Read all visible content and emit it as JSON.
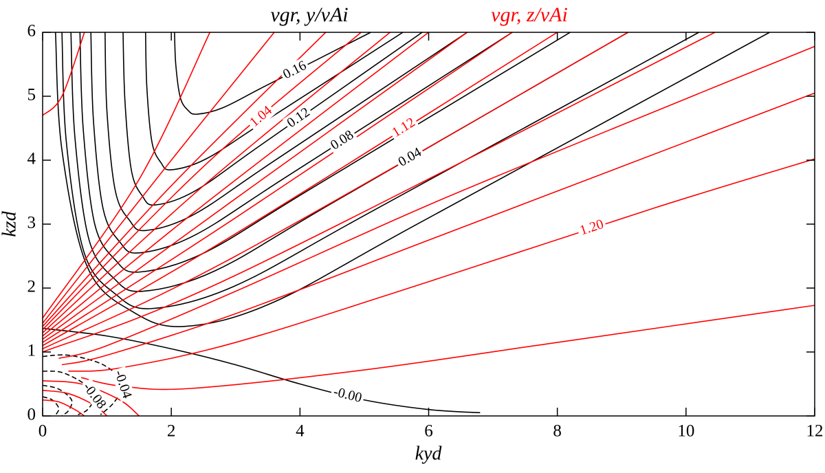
{
  "chart_data": {
    "type": "contour",
    "x_label": "kyd",
    "y_label": "kzd",
    "xlim": [
      0,
      12
    ],
    "ylim": [
      0,
      6
    ],
    "xticks": [
      0,
      2,
      4,
      6,
      8,
      10,
      12
    ],
    "yticks": [
      0,
      1,
      2,
      3,
      4,
      5,
      6
    ],
    "series": [
      {
        "name": "vgr, y/vAi",
        "color": "#000000",
        "contours": [
          {
            "level": 0.16,
            "label": "0.16",
            "x": [
              2.05,
              2.07,
              2.14,
              2.26,
              2.4,
              2.8,
              3.48,
              5.1
            ],
            "y": [
              6,
              5.49,
              4.98,
              4.78,
              4.72,
              4.82,
              5.17,
              6
            ]
          },
          {
            "level": 0.14,
            "x": [
              1.6,
              1.62,
              1.7,
              1.84,
              2.0,
              2.54,
              3.44,
              5.6
            ],
            "y": [
              6,
              5.14,
              4.28,
              3.96,
              3.85,
              4.02,
              4.6,
              6
            ]
          },
          {
            "level": 0.12,
            "label": "0.12",
            "x": [
              1.25,
              1.28,
              1.38,
              1.55,
              1.75,
              2.37,
              3.41,
              5.9
            ],
            "y": [
              6,
              4.92,
              3.84,
              3.44,
              3.3,
              3.52,
              4.25,
              6
            ]
          },
          {
            "level": 0.1,
            "x": [
              0.97,
              1.0,
              1.13,
              1.35,
              1.6,
              2.35,
              3.6,
              6.6
            ],
            "y": [
              6,
              4.76,
              3.52,
              3.06,
              2.9,
              3.15,
              3.99,
              6
            ]
          },
          {
            "level": 0.08,
            "label": "0.08",
            "x": [
              0.75,
              0.79,
              0.94,
              1.2,
              1.5,
              2.37,
              3.82,
              7.3
            ],
            "y": [
              6,
              4.62,
              3.24,
              2.72,
              2.55,
              2.83,
              3.76,
              6
            ]
          },
          {
            "level": 0.06,
            "x": [
              0.58,
              0.63,
              0.81,
              1.13,
              1.5,
              2.51,
              4.18,
              8.2
            ],
            "y": [
              6,
              4.5,
              3.0,
              2.44,
              2.25,
              2.55,
              3.56,
              6
            ]
          },
          {
            "level": 0.04,
            "label": "0.04",
            "x": [
              0.44,
              0.5,
              0.72,
              1.11,
              1.55,
              2.68,
              4.57,
              9.1
            ],
            "y": [
              6,
              4.38,
              2.76,
              2.15,
              1.95,
              2.27,
              3.37,
              6
            ]
          },
          {
            "level": 0.02,
            "x": [
              0.3,
              0.37,
              0.65,
              1.14,
              1.7,
              2.98,
              5.1,
              10.2
            ],
            "y": [
              6,
              4.27,
              2.54,
              1.9,
              1.68,
              2.03,
              3.19,
              6
            ]
          },
          {
            "level": 0.01,
            "x": [
              0.2,
              0.3,
              0.7,
              1.4,
              2.2,
              3.57,
              5.84,
              11.3
            ],
            "y": [
              6,
              4.16,
              2.32,
              1.63,
              1.4,
              1.77,
              3.01,
              6
            ]
          },
          {
            "level": 0,
            "label": "-0.00",
            "x": [
              0,
              1,
              2,
              3,
              4,
              5,
              6,
              6.8
            ],
            "y": [
              1.37,
              1.25,
              1.05,
              0.8,
              0.5,
              0.25,
              0.1,
              0.05
            ]
          },
          {
            "level": -0.04,
            "label": "-0.04",
            "x": [
              0,
              0.4,
              0.9,
              1.2,
              1.25,
              1.1,
              0.9
            ],
            "y": [
              0.93,
              0.95,
              0.82,
              0.6,
              0.45,
              0.2,
              0.02
            ]
          },
          {
            "level": -0.08,
            "label": "-0.08",
            "x": [
              0,
              0.3,
              0.65,
              0.8,
              0.7,
              0.55
            ],
            "y": [
              0.7,
              0.68,
              0.5,
              0.3,
              0.1,
              0.02
            ]
          },
          {
            "level": -0.12,
            "x": [
              0,
              0.25,
              0.45,
              0.4,
              0.3
            ],
            "y": [
              0.48,
              0.42,
              0.25,
              0.08,
              0.01
            ]
          },
          {
            "level": -0.16,
            "x": [
              0,
              0.15,
              0.25,
              0.2
            ],
            "y": [
              0.3,
              0.25,
              0.12,
              0.01
            ]
          }
        ]
      },
      {
        "name": "vgr, z/vAi",
        "color": "#ff0000",
        "contours": [
          {
            "level": 1.24,
            "x": [
              0.6,
              1.2,
              2.3,
              5,
              8,
              12
            ],
            "y": [
              0.6,
              0.47,
              0.43,
              0.72,
              1.15,
              1.73
            ]
          },
          {
            "level": 1.2,
            "label": "1.20",
            "x": [
              0.4,
              1.2,
              3,
              6,
              9.5,
              12
            ],
            "y": [
              0.7,
              0.75,
              1.15,
              2.1,
              3.25,
              4.02
            ]
          },
          {
            "level": 1.18,
            "x": [
              0.3,
              1,
              3,
              6,
              9,
              12
            ],
            "y": [
              0.8,
              0.95,
              1.6,
              2.75,
              3.9,
              5.05
            ]
          },
          {
            "level": 1.16,
            "x": [
              0.25,
              1,
              3,
              6,
              9,
              12
            ],
            "y": [
              0.9,
              1.1,
              1.95,
              3.3,
              4.55,
              5.78
            ]
          },
          {
            "level": 1.15,
            "x": [
              0,
              3,
              10.45
            ],
            "y": [
              1.0,
              2.2,
              6
            ]
          },
          {
            "level": 1.14,
            "x": [
              0,
              3,
              9.1
            ],
            "y": [
              1.05,
              2.5,
              6
            ]
          },
          {
            "level": 1.12,
            "label": "1.12",
            "x": [
              0,
              3,
              8.0
            ],
            "y": [
              1.1,
              2.85,
              6
            ]
          },
          {
            "level": 1.1,
            "x": [
              0,
              3,
              7.3
            ],
            "y": [
              1.15,
              3.1,
              6
            ]
          },
          {
            "level": 1.08,
            "x": [
              0,
              3,
              6.6
            ],
            "y": [
              1.2,
              3.4,
              6
            ]
          },
          {
            "level": 1.07,
            "x": [
              0,
              2.5,
              6.0
            ],
            "y": [
              1.25,
              3.3,
              6
            ]
          },
          {
            "level": 1.06,
            "x": [
              0,
              2.5,
              5.4
            ],
            "y": [
              1.3,
              3.6,
              6
            ]
          },
          {
            "level": 1.04,
            "label": "1.04",
            "x": [
              0,
              2.5,
              4.95
            ],
            "y": [
              1.35,
              3.9,
              6
            ]
          },
          {
            "level": 1.02,
            "x": [
              0,
              2,
              4.4
            ],
            "y": [
              1.4,
              3.6,
              6
            ]
          },
          {
            "level": 1.0,
            "x": [
              0,
              2,
              3.6
            ],
            "y": [
              1.45,
              4.0,
              6
            ]
          },
          {
            "level": 0.98,
            "x": [
              0,
              1.5,
              2.6
            ],
            "y": [
              1.53,
              3.7,
              6
            ]
          },
          {
            "level": 0.96,
            "x": [
              0,
              0.3,
              0.65
            ],
            "y": [
              4.7,
              5.0,
              6
            ]
          },
          {
            "level": 1.28,
            "x": [
              0,
              0.6,
              1.2,
              1.5
            ],
            "y": [
              0.55,
              0.5,
              0.25,
              0
            ]
          },
          {
            "level": 1.32,
            "x": [
              0,
              0.4,
              0.8,
              1.0
            ],
            "y": [
              0.4,
              0.35,
              0.17,
              0
            ]
          },
          {
            "level": 1.36,
            "x": [
              0,
              0.25,
              0.5,
              0.65
            ],
            "y": [
              0.25,
              0.22,
              0.1,
              0
            ]
          }
        ]
      }
    ]
  }
}
